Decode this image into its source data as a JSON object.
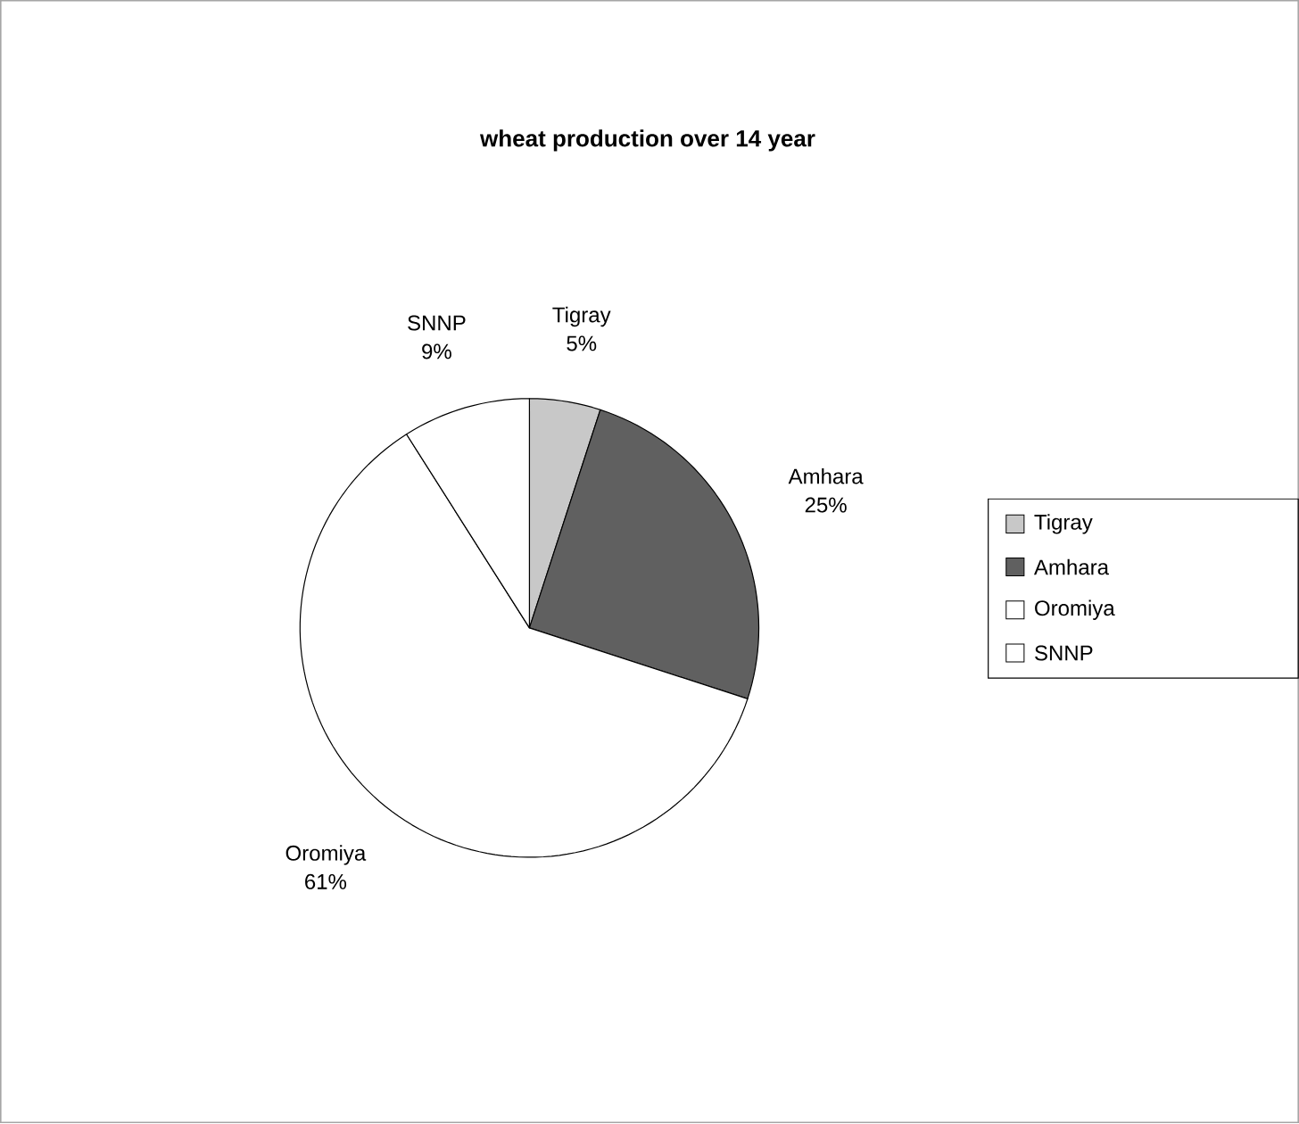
{
  "chart_data": {
    "type": "pie",
    "title": "wheat production over 14 year",
    "categories": [
      "Tigray",
      "Amhara",
      "Oromiya",
      "SNNP"
    ],
    "values": [
      5,
      25,
      61,
      9
    ],
    "value_labels": [
      "5%",
      "25%",
      "61%",
      "9%"
    ],
    "colors": [
      "#c8c8c8",
      "#606060",
      "#ffffff",
      "#ffffff"
    ],
    "legend": "right"
  }
}
